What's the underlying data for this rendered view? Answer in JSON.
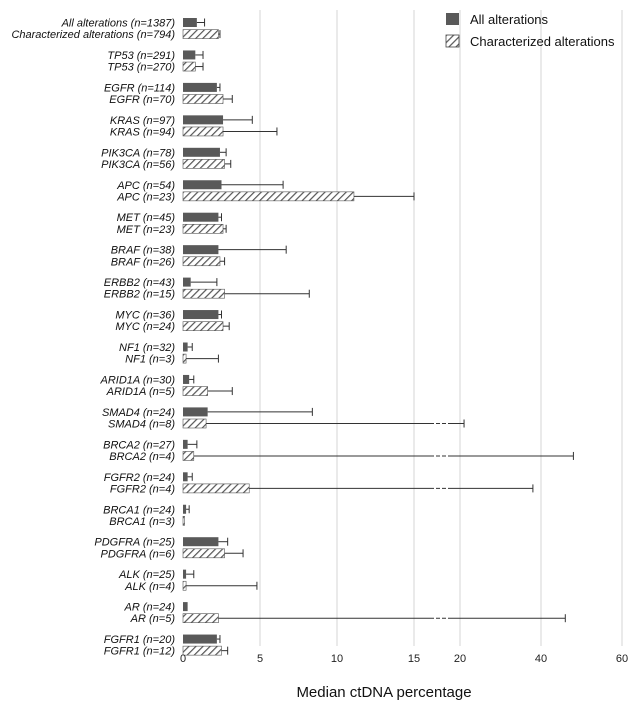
{
  "chart_data": {
    "type": "bar",
    "orientation": "horizontal",
    "xlabel": "Median ctDNA percentage",
    "x_axis_segments": [
      {
        "range": [
          0,
          15
        ],
        "ticks": [
          0,
          5,
          10,
          15
        ]
      },
      {
        "range": [
          15,
          20
        ],
        "ticks": [
          20
        ]
      },
      {
        "range": [
          20,
          60
        ],
        "ticks": [
          40,
          60
        ]
      }
    ],
    "axis_break": "15-20",
    "grid": "vertical lines at ticks",
    "legend_position": "top-right",
    "series": [
      {
        "name": "All alterations",
        "pattern": "solid",
        "color": "#595959"
      },
      {
        "name": "Characterized alterations",
        "pattern": "hatched",
        "color": "#595959"
      }
    ],
    "groups": [
      {
        "gene": "All alterations",
        "bars": [
          {
            "label": "All alterations (n=1387)",
            "series": 0,
            "value": 0.9,
            "error_high": 1.4
          },
          {
            "label": "Characterized alterations (n=794)",
            "series": 1,
            "value": 2.3,
            "error_high": 2.4
          }
        ]
      },
      {
        "gene": "TP53",
        "bars": [
          {
            "label": "TP53 (n=291)",
            "series": 0,
            "value": 0.8,
            "error_high": 1.3
          },
          {
            "label": "TP53 (n=270)",
            "series": 1,
            "value": 0.8,
            "error_high": 1.3
          }
        ]
      },
      {
        "gene": "EGFR",
        "bars": [
          {
            "label": "EGFR (n=114)",
            "series": 0,
            "value": 2.2,
            "error_high": 2.4
          },
          {
            "label": "EGFR (n=70)",
            "series": 1,
            "value": 2.6,
            "error_high": 3.2
          }
        ]
      },
      {
        "gene": "KRAS",
        "bars": [
          {
            "label": "KRAS (n=97)",
            "series": 0,
            "value": 2.6,
            "error_high": 4.5
          },
          {
            "label": "KRAS (n=94)",
            "series": 1,
            "value": 2.6,
            "error_high": 6.1
          }
        ]
      },
      {
        "gene": "PIK3CA",
        "bars": [
          {
            "label": "PIK3CA (n=78)",
            "series": 0,
            "value": 2.4,
            "error_high": 2.8
          },
          {
            "label": "PIK3CA (n=56)",
            "series": 1,
            "value": 2.7,
            "error_high": 3.1
          }
        ]
      },
      {
        "gene": "APC",
        "bars": [
          {
            "label": "APC (n=54)",
            "series": 0,
            "value": 2.5,
            "error_high": 6.5
          },
          {
            "label": "APC (n=23)",
            "series": 1,
            "value": 11.1,
            "error_high": 15.0
          }
        ]
      },
      {
        "gene": "MET",
        "bars": [
          {
            "label": "MET (n=45)",
            "series": 0,
            "value": 2.3,
            "error_high": 2.5
          },
          {
            "label": "MET (n=23)",
            "series": 1,
            "value": 2.6,
            "error_high": 2.8
          }
        ]
      },
      {
        "gene": "BRAF",
        "bars": [
          {
            "label": "BRAF (n=38)",
            "series": 0,
            "value": 2.3,
            "error_high": 6.7
          },
          {
            "label": "BRAF (n=26)",
            "series": 1,
            "value": 2.4,
            "error_high": 2.7
          }
        ]
      },
      {
        "gene": "ERBB2",
        "bars": [
          {
            "label": "ERBB2 (n=43)",
            "series": 0,
            "value": 0.5,
            "error_high": 2.2
          },
          {
            "label": "ERBB2 (n=15)",
            "series": 1,
            "value": 2.7,
            "error_high": 8.2
          }
        ]
      },
      {
        "gene": "MYC",
        "bars": [
          {
            "label": "MYC (n=36)",
            "series": 0,
            "value": 2.3,
            "error_high": 2.5
          },
          {
            "label": "MYC (n=24)",
            "series": 1,
            "value": 2.6,
            "error_high": 3.0
          }
        ]
      },
      {
        "gene": "NF1",
        "bars": [
          {
            "label": "NF1 (n=32)",
            "series": 0,
            "value": 0.3,
            "error_high": 0.6
          },
          {
            "label": "NF1 (n=3)",
            "series": 1,
            "value": 0.2,
            "error_high": 2.3
          }
        ]
      },
      {
        "gene": "ARID1A",
        "bars": [
          {
            "label": "ARID1A (n=30)",
            "series": 0,
            "value": 0.4,
            "error_high": 0.7
          },
          {
            "label": "ARID1A (n=5)",
            "series": 1,
            "value": 1.6,
            "error_high": 3.2
          }
        ]
      },
      {
        "gene": "SMAD4",
        "bars": [
          {
            "label": "SMAD4 (n=24)",
            "series": 0,
            "value": 1.6,
            "error_high": 8.4
          },
          {
            "label": "SMAD4 (n=8)",
            "series": 1,
            "value": 1.5,
            "error_high": 21.0
          }
        ]
      },
      {
        "gene": "BRCA2",
        "bars": [
          {
            "label": "BRCA2 (n=27)",
            "series": 0,
            "value": 0.3,
            "error_high": 0.9
          },
          {
            "label": "BRCA2 (n=4)",
            "series": 1,
            "value": 0.7,
            "error_high": 48.0
          }
        ]
      },
      {
        "gene": "FGFR2",
        "bars": [
          {
            "label": "FGFR2 (n=24)",
            "series": 0,
            "value": 0.3,
            "error_high": 0.6
          },
          {
            "label": "FGFR2 (n=4)",
            "series": 1,
            "value": 4.3,
            "error_high": 38.0
          }
        ]
      },
      {
        "gene": "BRCA1",
        "bars": [
          {
            "label": "BRCA1 (n=24)",
            "series": 0,
            "value": 0.2,
            "error_high": 0.4
          },
          {
            "label": "BRCA1 (n=3)",
            "series": 1,
            "value": 0.1,
            "error_high": null
          }
        ]
      },
      {
        "gene": "PDGFRA",
        "bars": [
          {
            "label": "PDGFRA (n=25)",
            "series": 0,
            "value": 2.3,
            "error_high": 2.9
          },
          {
            "label": "PDGFRA (n=6)",
            "series": 1,
            "value": 2.7,
            "error_high": 3.9
          }
        ]
      },
      {
        "gene": "ALK",
        "bars": [
          {
            "label": "ALK (n=25)",
            "series": 0,
            "value": 0.2,
            "error_high": 0.7
          },
          {
            "label": "ALK (n=4)",
            "series": 1,
            "value": 0.2,
            "error_high": 4.8
          }
        ]
      },
      {
        "gene": "AR",
        "bars": [
          {
            "label": "AR (n=24)",
            "series": 0,
            "value": 0.3,
            "error_high": null
          },
          {
            "label": "AR (n=5)",
            "series": 1,
            "value": 2.3,
            "error_high": 46.0
          }
        ]
      },
      {
        "gene": "FGFR1",
        "bars": [
          {
            "label": "FGFR1 (n=20)",
            "series": 0,
            "value": 2.2,
            "error_high": 2.4
          },
          {
            "label": "FGFR1 (n=12)",
            "series": 1,
            "value": 2.5,
            "error_high": 2.9
          }
        ]
      }
    ]
  }
}
